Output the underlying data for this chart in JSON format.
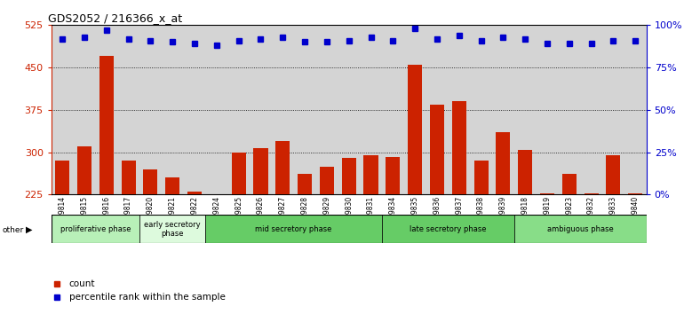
{
  "title": "GDS2052 / 216366_x_at",
  "samples": [
    "GSM109814",
    "GSM109815",
    "GSM109816",
    "GSM109817",
    "GSM109820",
    "GSM109821",
    "GSM109822",
    "GSM109824",
    "GSM109825",
    "GSM109826",
    "GSM109827",
    "GSM109828",
    "GSM109829",
    "GSM109830",
    "GSM109831",
    "GSM109834",
    "GSM109835",
    "GSM109836",
    "GSM109837",
    "GSM109838",
    "GSM109839",
    "GSM109818",
    "GSM109819",
    "GSM109823",
    "GSM109832",
    "GSM109833",
    "GSM109840"
  ],
  "counts": [
    285,
    310,
    470,
    285,
    270,
    255,
    230,
    222,
    300,
    307,
    320,
    262,
    275,
    290,
    295,
    292,
    455,
    385,
    390,
    285,
    335,
    305,
    228,
    262,
    228,
    295,
    228
  ],
  "percentiles": [
    92,
    93,
    97,
    92,
    91,
    90,
    89,
    88,
    91,
    92,
    93,
    90,
    90,
    91,
    93,
    91,
    98,
    92,
    94,
    91,
    93,
    92,
    89,
    89,
    89,
    91,
    91
  ],
  "phases": [
    {
      "label": "proliferative phase",
      "start": 0,
      "end": 4,
      "color": "#b8f0b8"
    },
    {
      "label": "early secretory\nphase",
      "start": 4,
      "end": 7,
      "color": "#ddfadd"
    },
    {
      "label": "mid secretory phase",
      "start": 7,
      "end": 15,
      "color": "#66cc66"
    },
    {
      "label": "late secretory phase",
      "start": 15,
      "end": 21,
      "color": "#66cc66"
    },
    {
      "label": "ambiguous phase",
      "start": 21,
      "end": 27,
      "color": "#88dd88"
    }
  ],
  "ylim_left": [
    225,
    525
  ],
  "yticks_left": [
    225,
    300,
    375,
    450,
    525
  ],
  "ylim_right": [
    0,
    100
  ],
  "yticks_right": [
    0,
    25,
    50,
    75,
    100
  ],
  "bar_color": "#cc2200",
  "dot_color": "#0000cc",
  "background_color": "#d4d4d4",
  "grid_color": "#000000",
  "left_axis_color": "#cc2200",
  "right_axis_color": "#0000cc"
}
